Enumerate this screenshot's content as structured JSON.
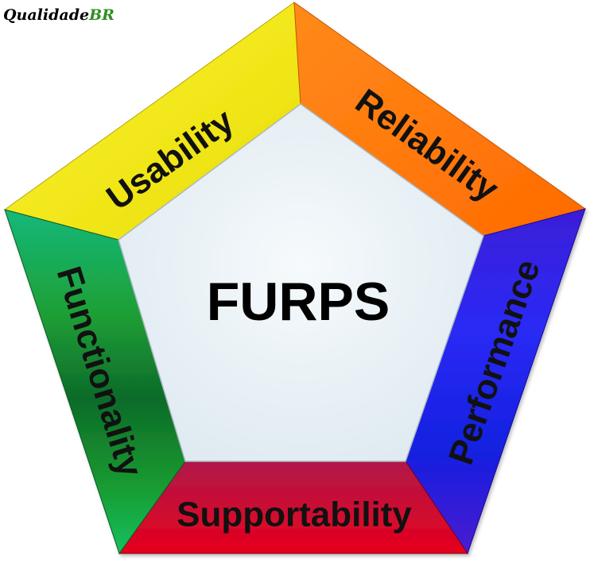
{
  "logo": {
    "text": "Qualidade",
    "accent_text": "BR",
    "accent_color": "#2f8f1f"
  },
  "diagram": {
    "center_title": "FURPS",
    "center_color": "#e8f1f6",
    "sides": [
      {
        "key": "usability",
        "label": "Usability",
        "color": "#f5ea00"
      },
      {
        "key": "reliability",
        "label": "Reliability",
        "color": "#ff7000"
      },
      {
        "key": "performance",
        "label": "Performance",
        "color": "#3a10f0"
      },
      {
        "key": "supportability",
        "label": "Supportability",
        "color": "#d4002a"
      },
      {
        "key": "functionality",
        "label": "Functionality",
        "color": "#119a3c"
      }
    ]
  }
}
